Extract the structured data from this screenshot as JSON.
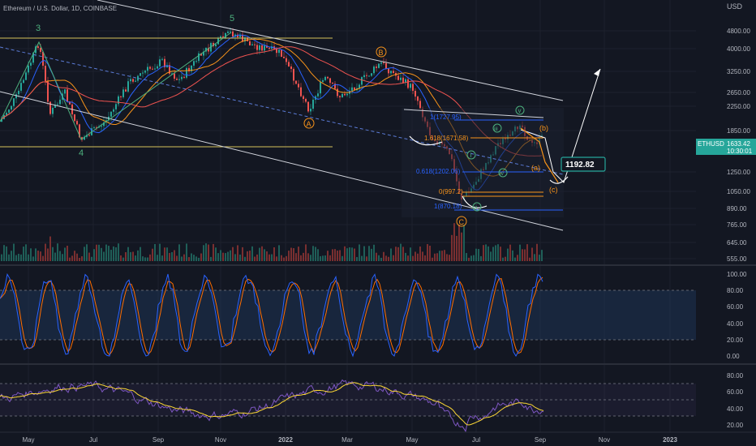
{
  "header": {
    "symbol_title": "Ethereum / U.S. Dollar, 1D, COINBASE",
    "currency": "USD"
  },
  "price_axis": {
    "ticks": [
      "4800.00",
      "4000.00",
      "3250.00",
      "2650.00",
      "2250.00",
      "1850.00",
      "1250.00",
      "1050.00",
      "890.00",
      "765.00",
      "645.00",
      "555.00"
    ]
  },
  "last_price": {
    "ticker": "ETHUSD",
    "price": "1633.42",
    "countdown": "10:30:01"
  },
  "target_label": "1192.82",
  "stoch_axis": {
    "ticks": [
      "100.00",
      "80.00",
      "60.00",
      "40.00",
      "20.00",
      "0.00"
    ]
  },
  "rsi_axis": {
    "ticks": [
      "80.00",
      "60.00",
      "40.00",
      "20.00"
    ]
  },
  "time_axis": {
    "labels": [
      "May",
      "Jul",
      "Sep",
      "Nov",
      "2022",
      "Mar",
      "May",
      "Jul",
      "Sep",
      "Nov",
      "2023"
    ]
  },
  "wave_labels": {
    "w3": "3",
    "w4": "4",
    "w5": "5",
    "wA": "A",
    "wB": "B",
    "wC": "C",
    "wi": "i",
    "wii": "ii",
    "wiii": "iii",
    "wiv": "iv",
    "wv": "v",
    "wa": "(a)",
    "wb": "(b)",
    "wc": "(c)"
  },
  "fib_labels": {
    "f1618": "1.618(1671.58)",
    "f1": "1(1727.95)",
    "f0618": "0.618(1202.06)",
    "f0": "0(997.2)",
    "f2": "1(870.18)"
  },
  "colors": {
    "background": "#131722",
    "candle_up": "#26a69a",
    "candle_down": "#ef5350",
    "channel": "#d1d4dc",
    "wave_orange": "#f7931a",
    "wave_green": "#4caf7d",
    "fib_blue": "#2962ff",
    "stoch_k": "#2962ff",
    "stoch_d": "#ff6d00",
    "rsi": "#7e57c2",
    "rsi_ma": "#fdd835",
    "level_yellow": "#d4c05a"
  }
}
